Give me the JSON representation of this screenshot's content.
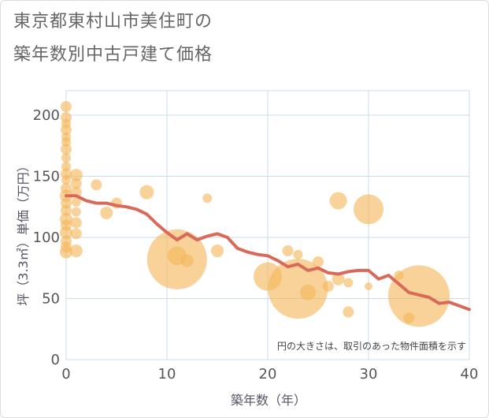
{
  "title_line1": "東京都東村山市美住町の",
  "title_line2": "築年数別中古戸建て価格",
  "chart_data": {
    "type": "scatter",
    "xlabel": "築年数（年）",
    "ylabel": "坪（3.3㎡）単価（万円）",
    "xlim": [
      0,
      40
    ],
    "ylim": [
      0,
      220
    ],
    "xticks": [
      0,
      10,
      20,
      30,
      40
    ],
    "yticks": [
      0,
      50,
      100,
      150,
      200
    ],
    "grid": true,
    "note": "円の大きさは、取引のあった物件面積を示す",
    "colors": {
      "bubble": "#f5b75a",
      "line": "#d96a5a",
      "grid": "#c9dce8"
    },
    "bubbles": [
      {
        "x": 0,
        "y": 207,
        "size": 7
      },
      {
        "x": 0,
        "y": 198,
        "size": 7
      },
      {
        "x": 0,
        "y": 193,
        "size": 6
      },
      {
        "x": 0,
        "y": 188,
        "size": 7
      },
      {
        "x": 0,
        "y": 182,
        "size": 6
      },
      {
        "x": 0,
        "y": 178,
        "size": 6
      },
      {
        "x": 0,
        "y": 172,
        "size": 7
      },
      {
        "x": 0,
        "y": 165,
        "size": 6
      },
      {
        "x": 0,
        "y": 158,
        "size": 6
      },
      {
        "x": 0,
        "y": 152,
        "size": 7
      },
      {
        "x": 0,
        "y": 147,
        "size": 6
      },
      {
        "x": 0,
        "y": 140,
        "size": 7
      },
      {
        "x": 0,
        "y": 134,
        "size": 8
      },
      {
        "x": 0,
        "y": 128,
        "size": 7
      },
      {
        "x": 0,
        "y": 122,
        "size": 7
      },
      {
        "x": 0,
        "y": 115,
        "size": 8
      },
      {
        "x": 0,
        "y": 110,
        "size": 7
      },
      {
        "x": 0,
        "y": 104,
        "size": 8
      },
      {
        "x": 0,
        "y": 97,
        "size": 7
      },
      {
        "x": 0,
        "y": 92,
        "size": 7
      },
      {
        "x": 0,
        "y": 88,
        "size": 8
      },
      {
        "x": 1,
        "y": 151,
        "size": 8
      },
      {
        "x": 1,
        "y": 144,
        "size": 7
      },
      {
        "x": 1,
        "y": 137,
        "size": 7
      },
      {
        "x": 1,
        "y": 129,
        "size": 6
      },
      {
        "x": 1,
        "y": 121,
        "size": 6
      },
      {
        "x": 1,
        "y": 112,
        "size": 7
      },
      {
        "x": 1,
        "y": 103,
        "size": 7
      },
      {
        "x": 1,
        "y": 89,
        "size": 8
      },
      {
        "x": 3,
        "y": 143,
        "size": 7
      },
      {
        "x": 4,
        "y": 120,
        "size": 8
      },
      {
        "x": 5,
        "y": 128,
        "size": 7
      },
      {
        "x": 8,
        "y": 137,
        "size": 9
      },
      {
        "x": 11,
        "y": 82,
        "size": 38
      },
      {
        "x": 11,
        "y": 85,
        "size": 12
      },
      {
        "x": 12,
        "y": 81,
        "size": 8
      },
      {
        "x": 14,
        "y": 132,
        "size": 6
      },
      {
        "x": 15,
        "y": 89,
        "size": 8
      },
      {
        "x": 20,
        "y": 68,
        "size": 18
      },
      {
        "x": 22,
        "y": 89,
        "size": 7
      },
      {
        "x": 23,
        "y": 86,
        "size": 6
      },
      {
        "x": 23,
        "y": 58,
        "size": 38
      },
      {
        "x": 24,
        "y": 55,
        "size": 10
      },
      {
        "x": 25,
        "y": 80,
        "size": 7
      },
      {
        "x": 26,
        "y": 60,
        "size": 7
      },
      {
        "x": 27,
        "y": 130,
        "size": 11
      },
      {
        "x": 27,
        "y": 66,
        "size": 8
      },
      {
        "x": 28,
        "y": 63,
        "size": 6
      },
      {
        "x": 28,
        "y": 39,
        "size": 7
      },
      {
        "x": 30,
        "y": 123,
        "size": 19
      },
      {
        "x": 30,
        "y": 60,
        "size": 5
      },
      {
        "x": 33,
        "y": 69,
        "size": 6
      },
      {
        "x": 34,
        "y": 34,
        "size": 7
      },
      {
        "x": 35,
        "y": 52,
        "size": 39
      }
    ],
    "trend": {
      "x": [
        0,
        1,
        2,
        3,
        4,
        5,
        6,
        7,
        8,
        9,
        10,
        11,
        12,
        13,
        14,
        15,
        16,
        17,
        18,
        19,
        20,
        21,
        22,
        23,
        24,
        25,
        26,
        27,
        28,
        29,
        30,
        31,
        32,
        33,
        34,
        35,
        36,
        37,
        38,
        39,
        40
      ],
      "y": [
        134,
        134,
        130,
        128,
        128,
        126,
        125,
        123,
        119,
        111,
        104,
        98,
        103,
        98,
        101,
        103,
        100,
        91,
        88,
        86,
        85,
        81,
        76,
        78,
        73,
        75,
        71,
        70,
        72,
        73,
        73,
        66,
        69,
        62,
        55,
        53,
        51,
        46,
        47,
        44,
        41
      ]
    }
  }
}
